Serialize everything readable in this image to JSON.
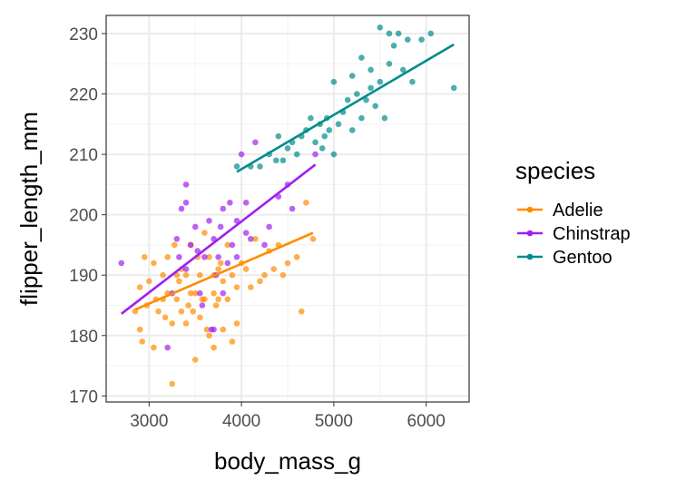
{
  "chart_data": {
    "type": "scatter",
    "xlabel": "body_mass_g",
    "ylabel": "flipper_length_mm",
    "xlim": [
      2535,
      6465
    ],
    "ylim": [
      169,
      233
    ],
    "xticks": [
      3000,
      4000,
      5000,
      6000
    ],
    "yticks": [
      170,
      180,
      190,
      200,
      210,
      220,
      230
    ],
    "grid": true,
    "legend": {
      "title": "species",
      "placement": "right"
    },
    "series": [
      {
        "name": "Adelie",
        "color": "#FF8C00",
        "trend_line": [
          [
            2850,
            184.3
          ],
          [
            4775,
            197.0
          ]
        ],
        "points": [
          [
            2850,
            184
          ],
          [
            2900,
            188
          ],
          [
            2900,
            181
          ],
          [
            2925,
            179
          ],
          [
            2950,
            193
          ],
          [
            2975,
            185
          ],
          [
            3000,
            189
          ],
          [
            3050,
            178
          ],
          [
            3050,
            192
          ],
          [
            3075,
            186
          ],
          [
            3100,
            184
          ],
          [
            3150,
            186
          ],
          [
            3150,
            190
          ],
          [
            3175,
            183
          ],
          [
            3200,
            193
          ],
          [
            3200,
            187
          ],
          [
            3250,
            172
          ],
          [
            3250,
            182
          ],
          [
            3275,
            195
          ],
          [
            3300,
            190
          ],
          [
            3300,
            186
          ],
          [
            3325,
            189
          ],
          [
            3350,
            184
          ],
          [
            3350,
            191
          ],
          [
            3400,
            190
          ],
          [
            3400,
            182
          ],
          [
            3425,
            185
          ],
          [
            3450,
            195
          ],
          [
            3450,
            187
          ],
          [
            3475,
            184
          ],
          [
            3500,
            176
          ],
          [
            3500,
            187
          ],
          [
            3525,
            193
          ],
          [
            3550,
            190
          ],
          [
            3550,
            183
          ],
          [
            3575,
            186
          ],
          [
            3600,
            197
          ],
          [
            3600,
            186
          ],
          [
            3625,
            181
          ],
          [
            3650,
            180
          ],
          [
            3650,
            193
          ],
          [
            3700,
            187
          ],
          [
            3700,
            190
          ],
          [
            3700,
            178
          ],
          [
            3725,
            185
          ],
          [
            3750,
            191
          ],
          [
            3750,
            186
          ],
          [
            3775,
            192
          ],
          [
            3800,
            181
          ],
          [
            3800,
            189
          ],
          [
            3850,
            195
          ],
          [
            3850,
            186
          ],
          [
            3900,
            190
          ],
          [
            3900,
            179
          ],
          [
            3950,
            188
          ],
          [
            3950,
            182
          ],
          [
            4000,
            192
          ],
          [
            4050,
            191
          ],
          [
            4100,
            188
          ],
          [
            4150,
            196
          ],
          [
            4200,
            189
          ],
          [
            4250,
            190
          ],
          [
            4300,
            194
          ],
          [
            4350,
            191
          ],
          [
            4400,
            195
          ],
          [
            4450,
            190
          ],
          [
            4500,
            192
          ],
          [
            4600,
            193
          ],
          [
            4650,
            184
          ],
          [
            4700,
            202
          ],
          [
            4775,
            196
          ]
        ]
      },
      {
        "name": "Chinstrap",
        "color": "#A020F0",
        "trend_line": [
          [
            2700,
            183.6
          ],
          [
            4800,
            208.3
          ]
        ],
        "points": [
          [
            2700,
            192
          ],
          [
            3200,
            178
          ],
          [
            3250,
            187
          ],
          [
            3300,
            196
          ],
          [
            3325,
            193
          ],
          [
            3350,
            201
          ],
          [
            3400,
            202
          ],
          [
            3400,
            191
          ],
          [
            3450,
            195
          ],
          [
            3500,
            198
          ],
          [
            3525,
            194
          ],
          [
            3550,
            187
          ],
          [
            3575,
            185
          ],
          [
            3600,
            193
          ],
          [
            3650,
            199
          ],
          [
            3675,
            181
          ],
          [
            3700,
            196
          ],
          [
            3725,
            190
          ],
          [
            3750,
            193
          ],
          [
            3775,
            198
          ],
          [
            3800,
            201
          ],
          [
            3800,
            187
          ],
          [
            3850,
            192
          ],
          [
            3875,
            202
          ],
          [
            3900,
            195
          ],
          [
            3950,
            199
          ],
          [
            3950,
            193
          ],
          [
            4000,
            210
          ],
          [
            4050,
            202
          ],
          [
            4100,
            196
          ],
          [
            4150,
            212
          ],
          [
            4250,
            195
          ],
          [
            4300,
            198
          ],
          [
            4400,
            203
          ],
          [
            4500,
            205
          ],
          [
            4550,
            201
          ],
          [
            4800,
            210
          ],
          [
            4050,
            197
          ],
          [
            3700,
            181
          ],
          [
            3400,
            205
          ]
        ]
      },
      {
        "name": "Gentoo",
        "color": "#008B8B",
        "trend_line": [
          [
            3950,
            207.1
          ],
          [
            6300,
            228.2
          ]
        ],
        "points": [
          [
            3950,
            208
          ],
          [
            4100,
            208
          ],
          [
            4200,
            208
          ],
          [
            4300,
            210
          ],
          [
            4375,
            209
          ],
          [
            4400,
            213
          ],
          [
            4450,
            209
          ],
          [
            4500,
            211
          ],
          [
            4550,
            212
          ],
          [
            4600,
            210
          ],
          [
            4650,
            213
          ],
          [
            4700,
            214
          ],
          [
            4750,
            216
          ],
          [
            4800,
            212
          ],
          [
            4850,
            215
          ],
          [
            4875,
            211
          ],
          [
            4900,
            213
          ],
          [
            4925,
            216
          ],
          [
            4950,
            214
          ],
          [
            5000,
            210
          ],
          [
            5050,
            215
          ],
          [
            5100,
            217
          ],
          [
            5150,
            219
          ],
          [
            5200,
            214
          ],
          [
            5250,
            220
          ],
          [
            5300,
            216
          ],
          [
            5350,
            219
          ],
          [
            5400,
            221
          ],
          [
            5450,
            218
          ],
          [
            5500,
            222
          ],
          [
            5550,
            216
          ],
          [
            5600,
            225
          ],
          [
            5650,
            228
          ],
          [
            5700,
            230
          ],
          [
            5750,
            224
          ],
          [
            5800,
            229
          ],
          [
            5850,
            222
          ],
          [
            5950,
            229
          ],
          [
            6050,
            230
          ],
          [
            6300,
            221
          ],
          [
            5000,
            222
          ],
          [
            5200,
            223
          ],
          [
            5300,
            226
          ],
          [
            5500,
            231
          ],
          [
            5600,
            230
          ],
          [
            5400,
            224
          ]
        ]
      }
    ]
  }
}
